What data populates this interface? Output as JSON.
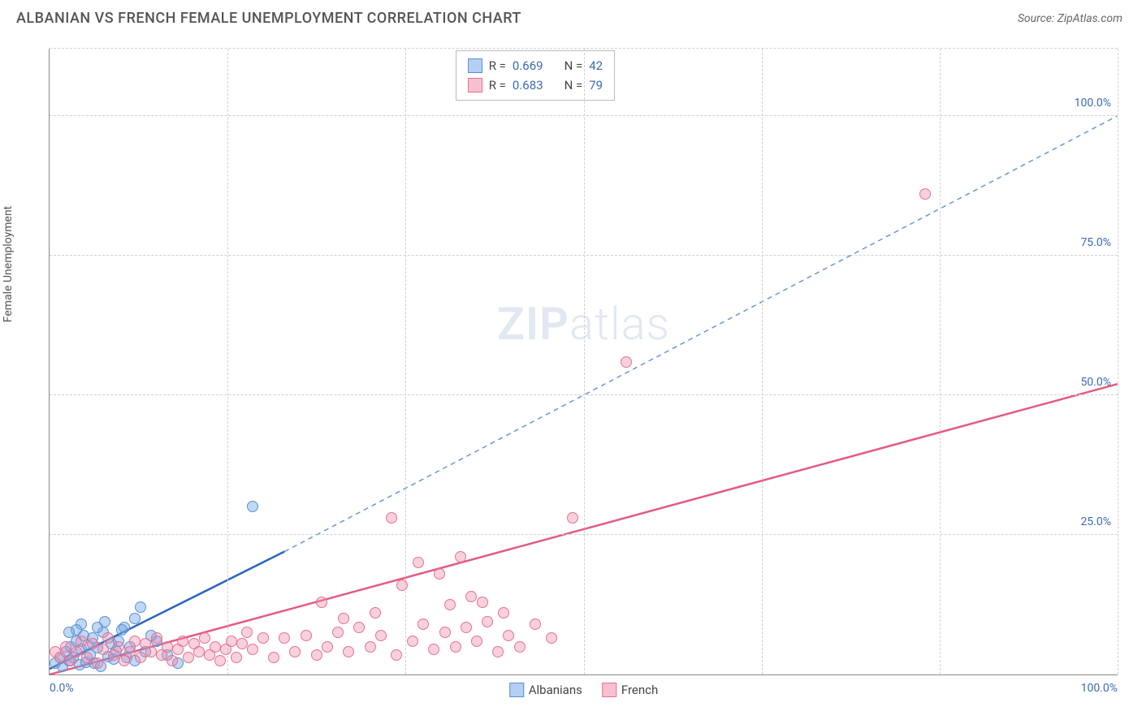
{
  "title": "ALBANIAN VS FRENCH FEMALE UNEMPLOYMENT CORRELATION CHART",
  "source_label": "Source: ",
  "source_name": "ZipAtlas.com",
  "ylabel": "Female Unemployment",
  "watermark_zip": "ZIP",
  "watermark_atlas": "atlas",
  "chart": {
    "type": "scatter",
    "xlim": [
      0,
      100
    ],
    "ylim": [
      0,
      112
    ],
    "y_ticks": [
      25,
      50,
      75,
      100
    ],
    "y_tick_labels": [
      "25.0%",
      "50.0%",
      "75.0%",
      "100.0%"
    ],
    "x_tick_min_label": "0.0%",
    "x_tick_max_label": "100.0%",
    "x_gridlines": [
      16.67,
      33.33,
      50,
      66.67,
      83.33,
      100
    ],
    "y_gridlines": [
      25,
      50,
      75,
      100,
      112
    ],
    "grid_color": "#d0d0d0",
    "axis_color": "#888888",
    "background_color": "#ffffff",
    "tick_label_color": "#3b6bb5",
    "point_radius": 7,
    "series": [
      {
        "name": "Albanians",
        "fill_color": "rgba(118,168,228,0.45)",
        "stroke_color": "#5a8fd6",
        "trend": {
          "x1": 0,
          "y1": 1,
          "x2": 22,
          "y2": 22,
          "dash_x2": 100,
          "dash_y2": 100,
          "solid_color": "#2d66b8",
          "dash_color": "#6a96d2",
          "width": 2.5
        },
        "R": "0.669",
        "N": "42",
        "points": [
          [
            0.5,
            2
          ],
          [
            1,
            3
          ],
          [
            1.2,
            1.5
          ],
          [
            1.5,
            4
          ],
          [
            1.8,
            2.5
          ],
          [
            2,
            5
          ],
          [
            2.2,
            3
          ],
          [
            2.5,
            6
          ],
          [
            2.8,
            1.8
          ],
          [
            3,
            4.5
          ],
          [
            3.2,
            7
          ],
          [
            3.4,
            2.2
          ],
          [
            3.6,
            5.2
          ],
          [
            3.8,
            3.5
          ],
          [
            4,
            6.5
          ],
          [
            4.2,
            2
          ],
          [
            4.5,
            4.8
          ],
          [
            4.8,
            1.5
          ],
          [
            5,
            7.5
          ],
          [
            5.5,
            3.2
          ],
          [
            5.8,
            5.5
          ],
          [
            6,
            2.8
          ],
          [
            6.2,
            4.2
          ],
          [
            6.5,
            6
          ],
          [
            7,
            8.5
          ],
          [
            7.2,
            3
          ],
          [
            7.5,
            5
          ],
          [
            8,
            2.5
          ],
          [
            8.5,
            12
          ],
          [
            9,
            4
          ],
          [
            10,
            6
          ],
          [
            11,
            3.5
          ],
          [
            12,
            2
          ],
          [
            8,
            10
          ],
          [
            9.5,
            7
          ],
          [
            4.5,
            8.5
          ],
          [
            3,
            9
          ],
          [
            6.8,
            8
          ],
          [
            5.2,
            9.5
          ],
          [
            2.5,
            8
          ],
          [
            1.8,
            7.5
          ],
          [
            19,
            30
          ]
        ]
      },
      {
        "name": "French",
        "fill_color": "rgba(240,140,170,0.40)",
        "stroke_color": "#e8718f",
        "trend": {
          "x1": 0,
          "y1": 0,
          "x2": 100,
          "y2": 52,
          "solid_color": "#e45a82",
          "width": 2.5
        },
        "R": "0.683",
        "N": "79",
        "points": [
          [
            0.5,
            4
          ],
          [
            1,
            3
          ],
          [
            1.5,
            5
          ],
          [
            2,
            2.5
          ],
          [
            2.5,
            4
          ],
          [
            3,
            6
          ],
          [
            3.5,
            3
          ],
          [
            4,
            5.5
          ],
          [
            4.5,
            2
          ],
          [
            5,
            4.5
          ],
          [
            5.5,
            6.5
          ],
          [
            6,
            3.5
          ],
          [
            6.5,
            5
          ],
          [
            7,
            2.5
          ],
          [
            7.5,
            4
          ],
          [
            8,
            6
          ],
          [
            8.5,
            3
          ],
          [
            9,
            5.5
          ],
          [
            9.5,
            4
          ],
          [
            10,
            6.5
          ],
          [
            10.5,
            3.5
          ],
          [
            11,
            5
          ],
          [
            11.5,
            2.5
          ],
          [
            12,
            4.5
          ],
          [
            12.5,
            6
          ],
          [
            13,
            3
          ],
          [
            13.5,
            5.5
          ],
          [
            14,
            4
          ],
          [
            14.5,
            6.5
          ],
          [
            15,
            3.5
          ],
          [
            15.5,
            5
          ],
          [
            16,
            2.5
          ],
          [
            16.5,
            4.5
          ],
          [
            17,
            6
          ],
          [
            17.5,
            3
          ],
          [
            18,
            5.5
          ],
          [
            18.5,
            7.5
          ],
          [
            19,
            4.5
          ],
          [
            20,
            6.5
          ],
          [
            21,
            3
          ],
          [
            22,
            6.5
          ],
          [
            23,
            4
          ],
          [
            24,
            7
          ],
          [
            25,
            3.5
          ],
          [
            25.5,
            13
          ],
          [
            26,
            5
          ],
          [
            27,
            7.5
          ],
          [
            27.5,
            10
          ],
          [
            28,
            4
          ],
          [
            29,
            8.5
          ],
          [
            30,
            5
          ],
          [
            30.5,
            11
          ],
          [
            31,
            7
          ],
          [
            32,
            28
          ],
          [
            32.5,
            3.5
          ],
          [
            33,
            16
          ],
          [
            34,
            6
          ],
          [
            34.5,
            20
          ],
          [
            35,
            9
          ],
          [
            36,
            4.5
          ],
          [
            36.5,
            18
          ],
          [
            37,
            7.5
          ],
          [
            37.5,
            12.5
          ],
          [
            38,
            5
          ],
          [
            38.5,
            21
          ],
          [
            39,
            8.5
          ],
          [
            39.5,
            14
          ],
          [
            40,
            6
          ],
          [
            41,
            9.5
          ],
          [
            42,
            4
          ],
          [
            42.5,
            11
          ],
          [
            43,
            7
          ],
          [
            44,
            5
          ],
          [
            45.5,
            9
          ],
          [
            47,
            6.5
          ],
          [
            49,
            28
          ],
          [
            54,
            56
          ],
          [
            82,
            86
          ],
          [
            40.5,
            13
          ]
        ]
      }
    ]
  },
  "legend": [
    {
      "label": "Albanians",
      "fill": "rgba(118,168,228,0.55)",
      "stroke": "#5a8fd6"
    },
    {
      "label": "French",
      "fill": "rgba(240,140,170,0.55)",
      "stroke": "#e8718f"
    }
  ],
  "stats_box": {
    "rows": [
      {
        "swatch_fill": "rgba(118,168,228,0.55)",
        "swatch_stroke": "#5a8fd6",
        "r_label": "R =",
        "r_val": "0.669",
        "n_label": "N =",
        "n_val": "42"
      },
      {
        "swatch_fill": "rgba(240,140,170,0.55)",
        "swatch_stroke": "#e8718f",
        "r_label": "R =",
        "r_val": "0.683",
        "n_label": "N =",
        "n_val": "79"
      }
    ]
  }
}
